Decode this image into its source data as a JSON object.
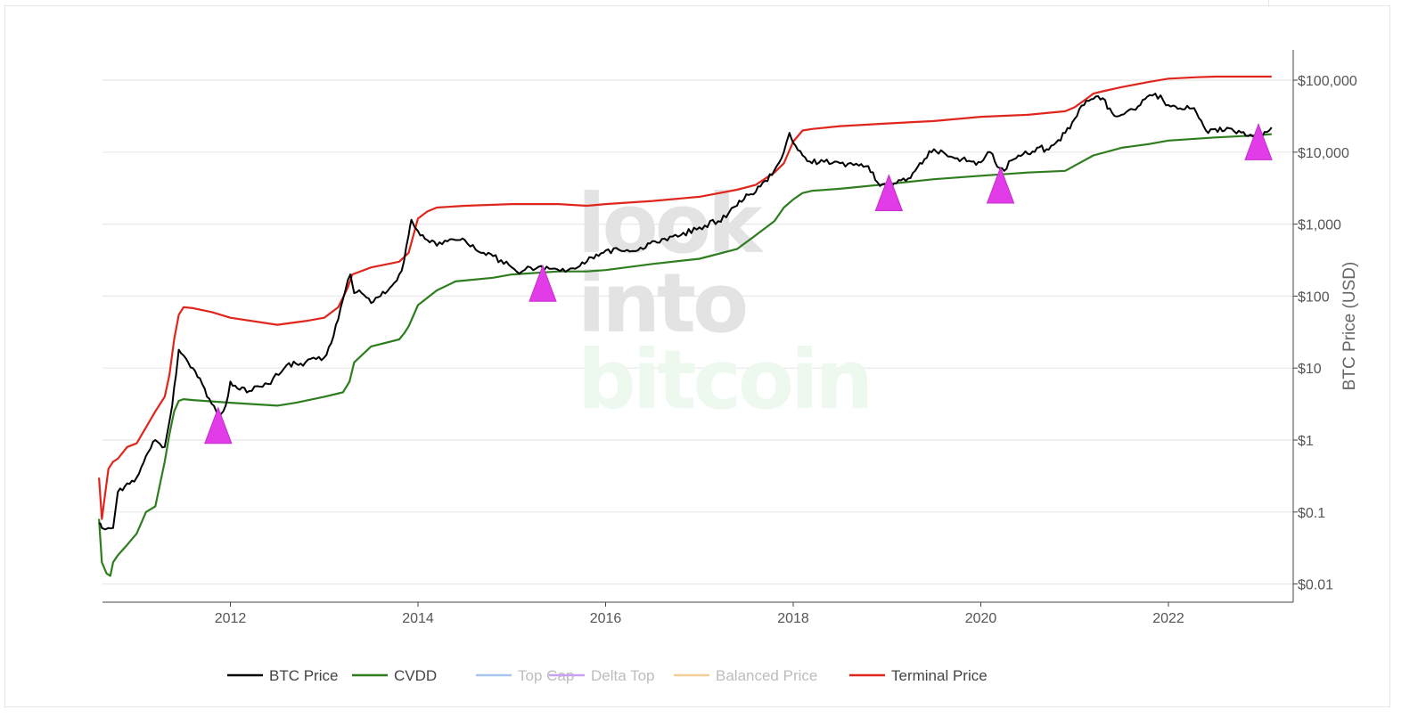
{
  "chart_data": {
    "type": "line",
    "title": "",
    "ylabel": "BTC Price (USD)",
    "yscale": "log",
    "ylim": [
      0.006,
      300000
    ],
    "xlim": [
      2010.6,
      2023.35
    ],
    "x_ticks": [
      2012,
      2014,
      2016,
      2018,
      2020,
      2022
    ],
    "x_tick_labels": [
      "2012",
      "2014",
      "2016",
      "2018",
      "2020",
      "2022"
    ],
    "y_ticks": [
      0.01,
      0.1,
      1,
      10,
      100,
      1000,
      10000,
      100000
    ],
    "y_tick_labels": [
      "$0.01",
      "$0.1",
      "$1",
      "$10",
      "$100",
      "$1,000",
      "$10,000",
      "$100,000"
    ],
    "grid": true,
    "legend_position": "bottom",
    "watermark": [
      "look",
      "into",
      "bitcoin"
    ],
    "series": [
      {
        "name": "BTC Price",
        "color": "#000000",
        "visible": true,
        "x": [
          2010.6,
          2010.63,
          2010.7,
          2010.75,
          2010.8,
          2010.9,
          2011.0,
          2011.1,
          2011.2,
          2011.3,
          2011.38,
          2011.42,
          2011.45,
          2011.5,
          2011.55,
          2011.6,
          2011.7,
          2011.8,
          2011.85,
          2011.9,
          2011.95,
          2012.0,
          2012.1,
          2012.2,
          2012.4,
          2012.6,
          2012.7,
          2012.8,
          2013.0,
          2013.1,
          2013.2,
          2013.28,
          2013.32,
          2013.4,
          2013.5,
          2013.6,
          2013.7,
          2013.8,
          2013.85,
          2013.9,
          2013.93,
          2014.0,
          2014.1,
          2014.2,
          2014.4,
          2014.5,
          2014.7,
          2014.8,
          2015.0,
          2015.05,
          2015.2,
          2015.4,
          2015.6,
          2015.7,
          2015.8,
          2015.9,
          2016.0,
          2016.2,
          2016.4,
          2016.5,
          2016.6,
          2016.8,
          2017.0,
          2017.2,
          2017.4,
          2017.5,
          2017.6,
          2017.7,
          2017.8,
          2017.9,
          2017.96,
          2018.0,
          2018.1,
          2018.2,
          2018.3,
          2018.5,
          2018.7,
          2018.8,
          2018.9,
          2019.0,
          2019.1,
          2019.2,
          2019.3,
          2019.4,
          2019.5,
          2019.6,
          2019.7,
          2019.8,
          2019.9,
          2020.0,
          2020.1,
          2020.2,
          2020.25,
          2020.3,
          2020.4,
          2020.5,
          2020.6,
          2020.7,
          2020.8,
          2020.9,
          2021.0,
          2021.1,
          2021.2,
          2021.25,
          2021.3,
          2021.4,
          2021.5,
          2021.6,
          2021.7,
          2021.8,
          2021.86,
          2022.0,
          2022.1,
          2022.2,
          2022.3,
          2022.4,
          2022.5,
          2022.6,
          2022.7,
          2022.8,
          2022.9,
          2023.0,
          2023.1
        ],
        "values": [
          0.07,
          0.06,
          0.06,
          0.06,
          0.19,
          0.25,
          0.3,
          0.6,
          1.0,
          0.8,
          3.0,
          8.0,
          18,
          15,
          12,
          10,
          6,
          3.2,
          2.5,
          2.3,
          3.0,
          6.5,
          5,
          4.8,
          6,
          11,
          11.5,
          12,
          14,
          28,
          90,
          200,
          110,
          110,
          80,
          100,
          130,
          200,
          300,
          700,
          1150,
          800,
          600,
          500,
          600,
          600,
          400,
          360,
          250,
          220,
          250,
          240,
          230,
          250,
          300,
          380,
          430,
          420,
          450,
          580,
          620,
          700,
          900,
          1100,
          1800,
          2600,
          2800,
          4000,
          5600,
          10000,
          18500,
          13500,
          9000,
          7000,
          7800,
          7000,
          6500,
          6400,
          3800,
          3500,
          3700,
          4000,
          5500,
          8000,
          11000,
          10000,
          8500,
          8000,
          7400,
          7200,
          10000,
          6000,
          5500,
          7500,
          9000,
          9500,
          11500,
          11000,
          13500,
          18500,
          29000,
          45000,
          55000,
          60000,
          56000,
          35000,
          33000,
          40000,
          45000,
          62000,
          65000,
          45000,
          40000,
          44000,
          35000,
          20000,
          21000,
          20000,
          19500,
          19000,
          16500,
          16600,
          22000
        ]
      },
      {
        "name": "CVDD",
        "color": "#2e7d1e",
        "visible": true,
        "x": [
          2010.6,
          2010.63,
          2010.68,
          2010.72,
          2010.75,
          2010.8,
          2010.9,
          2011.0,
          2011.1,
          2011.2,
          2011.3,
          2011.35,
          2011.4,
          2011.45,
          2011.5,
          2011.6,
          2012.0,
          2012.5,
          2012.7,
          2013.0,
          2013.2,
          2013.27,
          2013.32,
          2013.5,
          2013.8,
          2013.85,
          2013.9,
          2014.0,
          2014.2,
          2014.4,
          2014.8,
          2015.0,
          2015.5,
          2015.8,
          2016.0,
          2016.5,
          2017.0,
          2017.4,
          2017.6,
          2017.8,
          2017.9,
          2018.0,
          2018.1,
          2018.2,
          2018.5,
          2019.0,
          2019.5,
          2020.0,
          2020.5,
          2020.9,
          2021.0,
          2021.2,
          2021.5,
          2021.8,
          2022.0,
          2022.5,
          2022.9,
          2023.1
        ],
        "values": [
          0.08,
          0.02,
          0.014,
          0.013,
          0.02,
          0.025,
          0.035,
          0.05,
          0.1,
          0.12,
          0.5,
          1.2,
          2.5,
          3.5,
          3.7,
          3.6,
          3.3,
          3.0,
          3.3,
          4.0,
          4.6,
          6.5,
          12,
          20,
          25,
          30,
          38,
          75,
          120,
          160,
          180,
          200,
          220,
          220,
          230,
          280,
          330,
          450,
          700,
          1100,
          1700,
          2200,
          2700,
          2900,
          3100,
          3600,
          4200,
          4700,
          5200,
          5500,
          6500,
          9000,
          11500,
          13000,
          14500,
          16000,
          17000,
          17800
        ]
      },
      {
        "name": "Top Cap",
        "color": "#a9c7ee",
        "visible": false,
        "x": [],
        "values": []
      },
      {
        "name": "Delta Top",
        "color": "#c8a2f0",
        "visible": false,
        "x": [],
        "values": []
      },
      {
        "name": "Balanced Price",
        "color": "#f5cf9a",
        "visible": false,
        "x": [],
        "values": []
      },
      {
        "name": "Terminal Price",
        "color": "#e0261c",
        "visible": true,
        "x": [
          2010.6,
          2010.63,
          2010.67,
          2010.7,
          2010.75,
          2010.8,
          2010.9,
          2011.0,
          2011.1,
          2011.2,
          2011.3,
          2011.35,
          2011.4,
          2011.45,
          2011.5,
          2011.6,
          2011.8,
          2012.0,
          2012.5,
          2012.8,
          2013.0,
          2013.15,
          2013.25,
          2013.3,
          2013.5,
          2013.8,
          2013.9,
          2014.0,
          2014.1,
          2014.2,
          2014.5,
          2015.0,
          2015.5,
          2015.8,
          2016.0,
          2016.5,
          2017.0,
          2017.4,
          2017.6,
          2017.8,
          2017.9,
          2018.0,
          2018.1,
          2018.2,
          2018.5,
          2019.0,
          2019.5,
          2020.0,
          2020.5,
          2020.8,
          2020.9,
          2021.0,
          2021.1,
          2021.2,
          2021.3,
          2021.5,
          2021.8,
          2022.0,
          2022.3,
          2022.5,
          2023.1
        ],
        "values": [
          0.3,
          0.08,
          0.2,
          0.4,
          0.5,
          0.55,
          0.8,
          0.9,
          1.5,
          2.5,
          4,
          8,
          25,
          55,
          70,
          68,
          60,
          50,
          40,
          45,
          50,
          70,
          130,
          200,
          250,
          300,
          400,
          1200,
          1500,
          1700,
          1800,
          1900,
          1900,
          1800,
          1900,
          2100,
          2400,
          3000,
          3500,
          5200,
          7000,
          14000,
          20000,
          21000,
          23000,
          25000,
          27000,
          31000,
          33000,
          36000,
          37000,
          42000,
          52000,
          65000,
          70000,
          80000,
          95000,
          105000,
          110000,
          112000,
          112000
        ]
      }
    ],
    "annotations": [
      {
        "type": "marker",
        "shape": "triangle-up",
        "color": "#e23ce8",
        "x": 2011.87,
        "y": 0.85
      },
      {
        "type": "marker",
        "shape": "triangle-up",
        "color": "#e23ce8",
        "x": 2015.33,
        "y": 80
      },
      {
        "type": "marker",
        "shape": "triangle-up",
        "color": "#e23ce8",
        "x": 2019.02,
        "y": 1450
      },
      {
        "type": "marker",
        "shape": "triangle-up",
        "color": "#e23ce8",
        "x": 2020.21,
        "y": 1850
      },
      {
        "type": "marker",
        "shape": "triangle-up",
        "color": "#e23ce8",
        "x": 2022.96,
        "y": 7400
      }
    ]
  }
}
